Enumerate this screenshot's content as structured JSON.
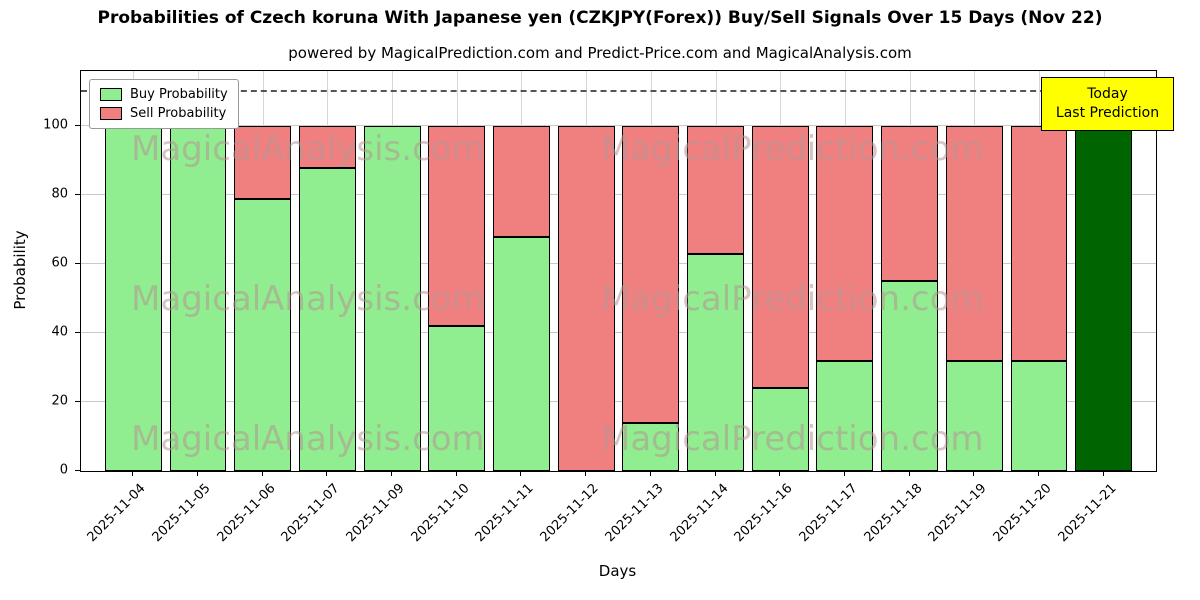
{
  "title": "Probabilities of Czech koruna With Japanese yen (CZKJPY(Forex)) Buy/Sell Signals Over 15 Days (Nov 22)",
  "subtitle": "powered by MagicalPrediction.com and Predict-Price.com and MagicalAnalysis.com",
  "axes": {
    "xlabel": "Days",
    "ylabel": "Probability"
  },
  "legend": {
    "items": [
      {
        "label": "Buy Probability",
        "color": "#90EE90"
      },
      {
        "label": "Sell Probability",
        "color": "#F08080"
      }
    ]
  },
  "today_box": {
    "line1": "Today",
    "line2": "Last Prediction",
    "bg": "#FFFF00"
  },
  "watermarks": {
    "left_text": "MagicalAnalysis.com",
    "right_text": "MagicalPrediction.com",
    "rows": 3
  },
  "chart_data": {
    "type": "bar",
    "stacked": true,
    "title": "Probabilities of Czech koruna With Japanese yen (CZKJPY(Forex)) Buy/Sell Signals Over 15 Days (Nov 22)",
    "xlabel": "Days",
    "ylabel": "Probability",
    "categories": [
      "2025-11-04",
      "2025-11-05",
      "2025-11-06",
      "2025-11-07",
      "2025-11-09",
      "2025-11-10",
      "2025-11-11",
      "2025-11-12",
      "2025-11-13",
      "2025-11-14",
      "2025-11-16",
      "2025-11-17",
      "2025-11-18",
      "2025-11-19",
      "2025-11-20",
      "2025-11-21"
    ],
    "series": [
      {
        "name": "Buy Probability",
        "color": "#90EE90",
        "values": [
          100,
          100,
          79,
          88,
          100,
          42,
          68,
          0,
          14,
          63,
          24,
          32,
          55,
          32,
          32,
          100
        ]
      },
      {
        "name": "Sell Probability",
        "color": "#F08080",
        "values": [
          0,
          0,
          21,
          12,
          0,
          58,
          32,
          100,
          86,
          37,
          76,
          68,
          45,
          68,
          68,
          0
        ]
      }
    ],
    "today_index": 15,
    "today_bar_color": "#006400",
    "bar_edge_color": "#000000",
    "yticks": [
      0,
      20,
      40,
      60,
      80,
      100
    ],
    "ylim": [
      0,
      116
    ],
    "dashed_line_y": 110,
    "grid": true,
    "legend_position": "upper left"
  }
}
